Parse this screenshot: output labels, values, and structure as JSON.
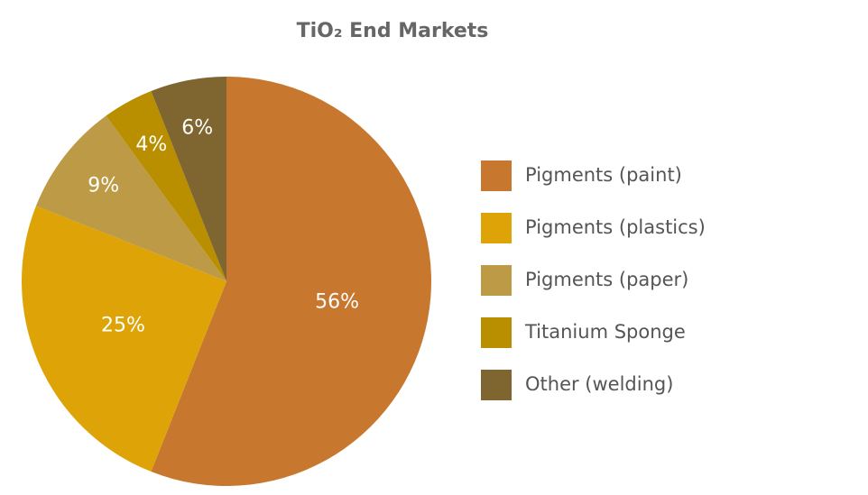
{
  "chart_data": {
    "type": "pie",
    "title": "TiO₂ End Markets",
    "categories": [
      "Pigments (paint)",
      "Pigments (plastics)",
      "Pigments (paper)",
      "Titanium Sponge",
      "Other (welding)"
    ],
    "values": [
      56,
      25,
      9,
      4,
      6
    ],
    "value_labels": [
      "56%",
      "25%",
      "9%",
      "4%",
      "6%"
    ],
    "colors": [
      "#c8782e",
      "#dea407",
      "#bd9a45",
      "#b98f00",
      "#7f6530"
    ],
    "legend": "right"
  }
}
